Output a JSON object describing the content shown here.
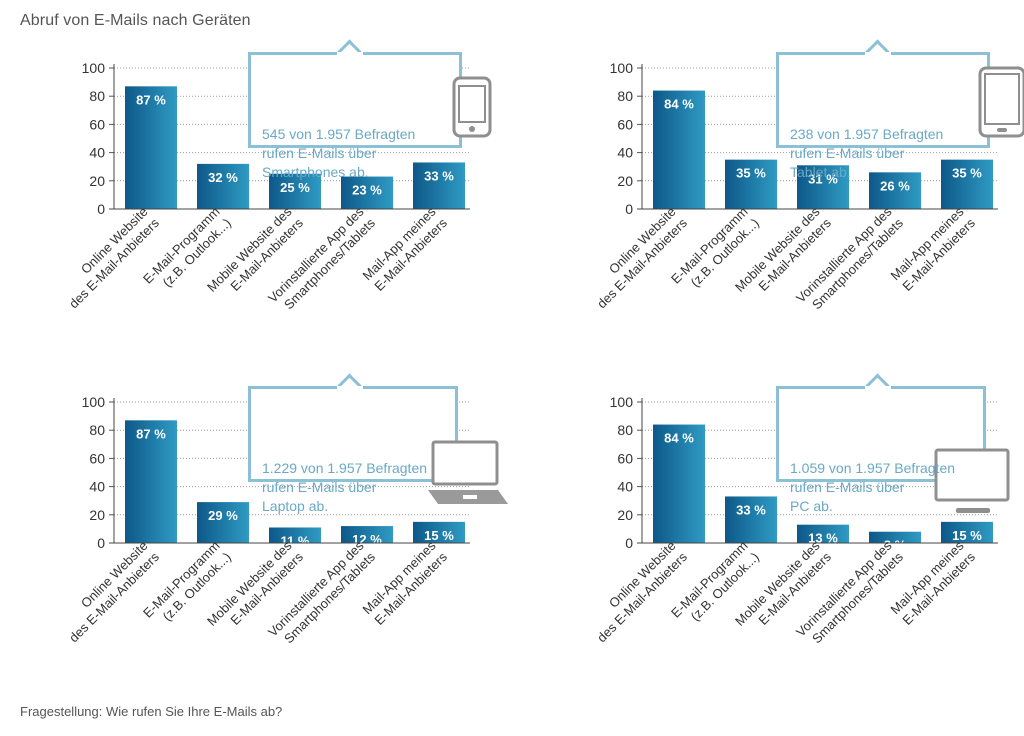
{
  "header": {
    "title": "Abruf von E-Mails nach Geräten"
  },
  "footer": {
    "question": "Fragestellung: Wie rufen Sie Ihre E-Mails ab?"
  },
  "colors": {
    "bar_dark": "#0d5888",
    "bar_light": "#2f9bc4",
    "callout": "#8cc0d6",
    "device": "#8f8f8f"
  },
  "chart_data": [
    {
      "type": "bar",
      "device": "smartphone-icon",
      "callout": "545 von 1.957 Befragten\nrufen E-Mails über\nSmartphones ab.",
      "categories": [
        "Online Website\ndes E-Mail-Anbieters",
        "E-Mail-Programm\n(z.B. Outlook...)",
        "Mobile Website des\nE-Mail-Anbieters",
        "Vorinstallierte App des\nSmartphones/Tablets",
        "Mail-App meines\nE-Mail-Anbieters"
      ],
      "values": [
        87,
        32,
        25,
        23,
        33
      ],
      "labels": [
        "87 %",
        "32 %",
        "25 %",
        "23 %",
        "33 %"
      ],
      "yticks": [
        "0",
        "20",
        "40",
        "60",
        "80",
        "100"
      ],
      "ylim": [
        0,
        100
      ],
      "grid": true
    },
    {
      "type": "bar",
      "device": "tablet-icon",
      "callout": "238 von 1.957 Befragten\nrufen E-Mails über\nTablet ab.",
      "categories": [
        "Online Website\ndes E-Mail-Anbieters",
        "E-Mail-Programm\n(z.B. Outlook...)",
        "Mobile Website des\nE-Mail-Anbieters",
        "Vorinstallierte App des\nSmartphones/Tablets",
        "Mail-App meines\nE-Mail-Anbieters"
      ],
      "values": [
        84,
        35,
        31,
        26,
        35
      ],
      "labels": [
        "84 %",
        "35 %",
        "31 %",
        "26 %",
        "35 %"
      ],
      "yticks": [
        "0",
        "20",
        "40",
        "60",
        "80",
        "100"
      ],
      "ylim": [
        0,
        100
      ],
      "grid": true
    },
    {
      "type": "bar",
      "device": "laptop-icon",
      "callout": "1.229 von 1.957 Befragten\nrufen E-Mails über\nLaptop ab.",
      "categories": [
        "Online Website\ndes E-Mail-Anbieters",
        "E-Mail-Programm\n(z.B. Outlook...)",
        "Mobile Website des\nE-Mail-Anbieters",
        "Vorinstallierte App des\nSmartphones/Tablets",
        "Mail-App meines\nE-Mail-Anbieters"
      ],
      "values": [
        87,
        29,
        11,
        12,
        15
      ],
      "labels": [
        "87 %",
        "29 %",
        "11 %",
        "12 %",
        "15 %"
      ],
      "yticks": [
        "0",
        "20",
        "40",
        "60",
        "80",
        "100"
      ],
      "ylim": [
        0,
        100
      ],
      "grid": true
    },
    {
      "type": "bar",
      "device": "desktop-monitor-icon",
      "callout": "1.059 von 1.957 Befragten\nrufen E-Mails über\nPC ab.",
      "categories": [
        "Online Website\ndes E-Mail-Anbieters",
        "E-Mail-Programm\n(z.B. Outlook...)",
        "Mobile Website des\nE-Mail-Anbieters",
        "Vorinstallierte App des\nSmartphones/Tablets",
        "Mail-App meines\nE-Mail-Anbieters"
      ],
      "values": [
        84,
        33,
        13,
        8,
        15
      ],
      "labels": [
        "84 %",
        "33 %",
        "13 %",
        "8 %",
        "15 %"
      ],
      "yticks": [
        "0",
        "20",
        "40",
        "60",
        "80",
        "100"
      ],
      "ylim": [
        0,
        100
      ],
      "grid": true
    }
  ]
}
